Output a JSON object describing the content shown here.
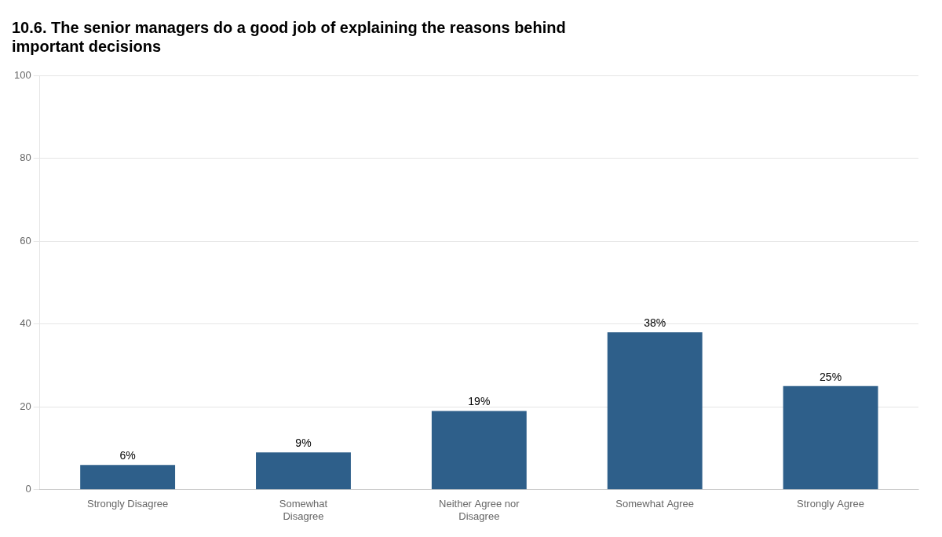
{
  "chart_data": {
    "type": "bar",
    "title": [
      "10.6. The senior managers do a good job of explaining the reasons behind",
      "important decisions"
    ],
    "categories": [
      "Strongly Disagree",
      "Somewhat\nDisagree",
      "Neither Agree nor\nDisagree",
      "Somewhat Agree",
      "Strongly Agree"
    ],
    "values": [
      6,
      9,
      19,
      38,
      25
    ],
    "value_labels": [
      "6%",
      "9%",
      "19%",
      "38%",
      "25%"
    ],
    "data_labels": true,
    "color": "#2E5F8A",
    "ylim": [
      0,
      100
    ],
    "yticks": [
      0,
      20,
      40,
      60,
      80,
      100
    ],
    "grid": true
  }
}
